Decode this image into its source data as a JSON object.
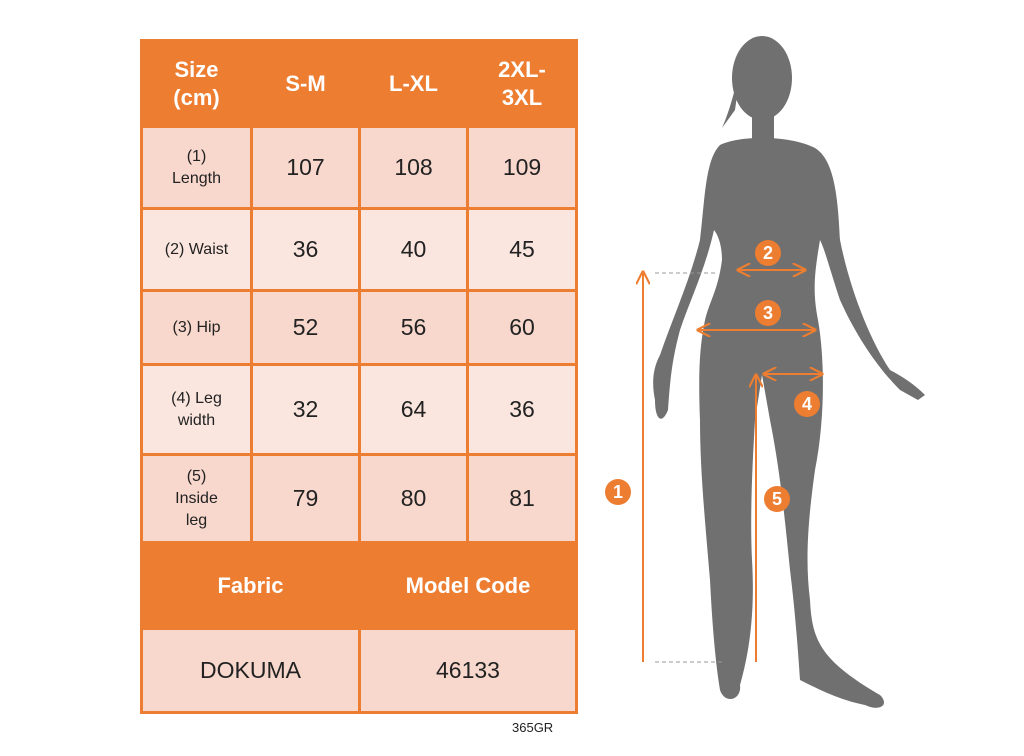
{
  "table": {
    "header": [
      "Size (cm)",
      "S-M",
      "L-XL",
      "2XL-3XL"
    ],
    "rows": [
      {
        "label": "(1) Length",
        "values": [
          "107",
          "108",
          "109"
        ]
      },
      {
        "label": "(2) Waist",
        "values": [
          "36",
          "40",
          "45"
        ]
      },
      {
        "label": "(3) Hip",
        "values": [
          "52",
          "56",
          "60"
        ]
      },
      {
        "label": "(4) Leg width",
        "values": [
          "32",
          "64",
          "36"
        ]
      },
      {
        "label": "(5) Inside leg",
        "values": [
          "79",
          "80",
          "81"
        ]
      }
    ],
    "footer_headers": [
      "Fabric",
      "Model Code"
    ],
    "footer_values": [
      "DOKUMA",
      "46133"
    ]
  },
  "product_code": "365GR",
  "figure": {
    "markers": [
      "1",
      "2",
      "3",
      "4",
      "5"
    ]
  },
  "colors": {
    "accent": "#ED7D31",
    "cell": "#F8D7CC",
    "cell_light": "#FBE6DF",
    "silhouette": "#707070"
  }
}
